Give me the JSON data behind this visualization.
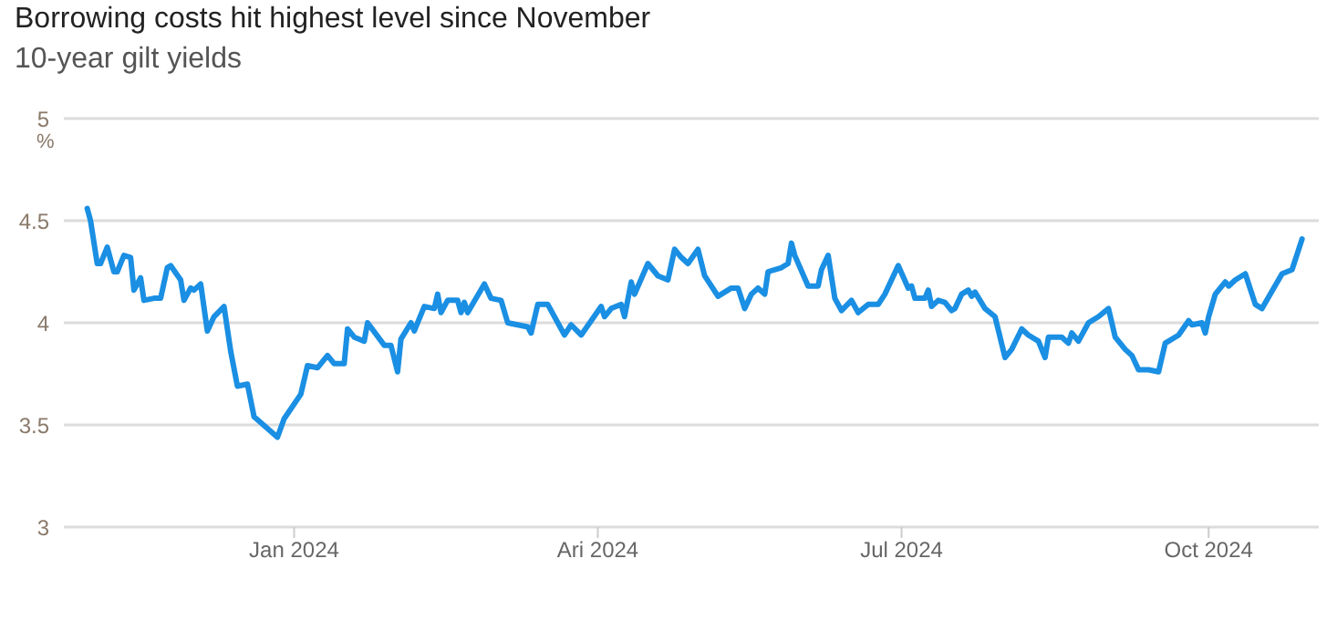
{
  "chart_data": {
    "type": "line",
    "title": "Borrowing costs hit highest level since November",
    "subtitle": "10-year gilt yields",
    "ylabel": "%",
    "x": [
      "2023-10-31",
      "2023-11-01",
      "2023-11-03",
      "2023-11-04",
      "2023-11-06",
      "2023-11-08",
      "2023-11-09",
      "2023-11-11",
      "2023-11-13",
      "2023-11-14",
      "2023-11-16",
      "2023-11-17",
      "2023-11-20",
      "2023-11-22",
      "2023-11-24",
      "2023-11-25",
      "2023-11-28",
      "2023-11-29",
      "2023-12-01",
      "2023-12-02",
      "2023-12-04",
      "2023-12-06",
      "2023-12-08",
      "2023-12-11",
      "2023-12-13",
      "2023-12-15",
      "2023-12-18",
      "2023-12-20",
      "2023-12-27",
      "2023-12-29",
      "2024-01-03",
      "2024-01-05",
      "2024-01-08",
      "2024-01-11",
      "2024-01-13",
      "2024-01-16",
      "2024-01-17",
      "2024-01-19",
      "2024-01-22",
      "2024-01-23",
      "2024-01-28",
      "2024-01-30",
      "2024-02-01",
      "2024-02-02",
      "2024-02-05",
      "2024-02-06",
      "2024-02-09",
      "2024-02-12",
      "2024-02-13",
      "2024-02-14",
      "2024-02-16",
      "2024-02-19",
      "2024-02-20",
      "2024-02-21",
      "2024-02-22",
      "2024-02-27",
      "2024-02-29",
      "2024-03-03",
      "2024-03-05",
      "2024-03-08",
      "2024-03-11",
      "2024-03-12",
      "2024-03-14",
      "2024-03-17",
      "2024-03-20",
      "2024-03-22",
      "2024-03-24",
      "2024-03-27",
      "2024-04-02",
      "2024-04-03",
      "2024-04-05",
      "2024-04-08",
      "2024-04-09",
      "2024-04-11",
      "2024-04-12",
      "2024-04-16",
      "2024-04-17",
      "2024-04-19",
      "2024-04-22",
      "2024-04-24",
      "2024-04-26",
      "2024-04-28",
      "2024-05-01",
      "2024-05-03",
      "2024-05-07",
      "2024-05-11",
      "2024-05-13",
      "2024-05-15",
      "2024-05-17",
      "2024-05-19",
      "2024-05-21",
      "2024-05-22",
      "2024-05-26",
      "2024-05-28",
      "2024-05-29",
      "2024-05-30",
      "2024-06-03",
      "2024-06-06",
      "2024-06-07",
      "2024-06-09",
      "2024-06-11",
      "2024-06-13",
      "2024-06-16",
      "2024-06-18",
      "2024-06-21",
      "2024-06-24",
      "2024-06-26",
      "2024-06-30",
      "2024-07-03",
      "2024-07-04",
      "2024-07-05",
      "2024-07-08",
      "2024-07-09",
      "2024-07-10",
      "2024-07-12",
      "2024-07-14",
      "2024-07-16",
      "2024-07-17",
      "2024-07-19",
      "2024-07-21",
      "2024-07-22",
      "2024-07-23",
      "2024-07-26",
      "2024-07-29",
      "2024-08-01",
      "2024-08-03",
      "2024-08-06",
      "2024-08-08",
      "2024-08-11",
      "2024-08-13",
      "2024-08-14",
      "2024-08-18",
      "2024-08-20",
      "2024-08-21",
      "2024-08-23",
      "2024-08-26",
      "2024-08-29",
      "2024-09-01",
      "2024-09-03",
      "2024-09-06",
      "2024-09-08",
      "2024-09-10",
      "2024-09-13",
      "2024-09-16",
      "2024-09-18",
      "2024-09-22",
      "2024-09-25",
      "2024-09-26",
      "2024-09-29",
      "2024-09-30",
      "2024-10-01",
      "2024-10-03",
      "2024-10-06",
      "2024-10-07",
      "2024-10-09",
      "2024-10-12",
      "2024-10-15",
      "2024-10-17",
      "2024-10-23",
      "2024-10-26",
      "2024-10-29"
    ],
    "series": [
      {
        "color": "#1a8fe3",
        "values": [
          4.56,
          4.5,
          4.29,
          4.29,
          4.37,
          4.25,
          4.25,
          4.33,
          4.32,
          4.16,
          4.22,
          4.11,
          4.12,
          4.12,
          4.27,
          4.28,
          4.21,
          4.11,
          4.17,
          4.16,
          4.19,
          3.96,
          4.03,
          4.08,
          3.86,
          3.69,
          3.7,
          3.54,
          3.44,
          3.53,
          3.65,
          3.79,
          3.78,
          3.84,
          3.8,
          3.8,
          3.97,
          3.93,
          3.91,
          4.0,
          3.89,
          3.89,
          3.76,
          3.92,
          4.0,
          3.96,
          4.08,
          4.07,
          4.14,
          4.05,
          4.11,
          4.11,
          4.05,
          4.1,
          4.05,
          4.19,
          4.12,
          4.11,
          4.0,
          3.99,
          3.98,
          3.95,
          4.09,
          4.09,
          4.0,
          3.94,
          3.99,
          3.94,
          4.08,
          4.03,
          4.07,
          4.09,
          4.03,
          4.2,
          4.14,
          4.29,
          4.27,
          4.23,
          4.21,
          4.36,
          4.32,
          4.29,
          4.36,
          4.23,
          4.13,
          4.17,
          4.17,
          4.07,
          4.14,
          4.17,
          4.14,
          4.25,
          4.27,
          4.29,
          4.39,
          4.33,
          4.18,
          4.18,
          4.26,
          4.33,
          4.12,
          4.06,
          4.11,
          4.05,
          4.09,
          4.09,
          4.14,
          4.28,
          4.17,
          4.18,
          4.12,
          4.12,
          4.16,
          4.08,
          4.11,
          4.1,
          4.06,
          4.07,
          4.14,
          4.16,
          4.13,
          4.15,
          4.07,
          4.03,
          3.83,
          3.87,
          3.97,
          3.94,
          3.91,
          3.83,
          3.93,
          3.93,
          3.9,
          3.95,
          3.91,
          4.0,
          4.03,
          4.07,
          3.93,
          3.87,
          3.84,
          3.77,
          3.77,
          3.76,
          3.9,
          3.94,
          4.01,
          3.99,
          4.0,
          3.95,
          4.03,
          4.14,
          4.2,
          4.18,
          4.21,
          4.24,
          4.09,
          4.07,
          4.24,
          4.26,
          4.41
        ]
      }
    ],
    "xlim": [
      "2023-10-24",
      "2024-11-03"
    ],
    "xticks": [
      {
        "value": "2024-01-01",
        "label": "Jan 2024"
      },
      {
        "value": "2024-04-01",
        "label": "Ari 2024"
      },
      {
        "value": "2024-07-01",
        "label": "Jul 2024"
      },
      {
        "value": "2024-10-01",
        "label": "Oct 2024"
      }
    ],
    "ylim": [
      3,
      5
    ],
    "yticks": [
      3,
      3.5,
      4,
      4.5,
      5
    ],
    "grid": "y",
    "legend": false,
    "marker": "none",
    "line_style": "solid"
  }
}
